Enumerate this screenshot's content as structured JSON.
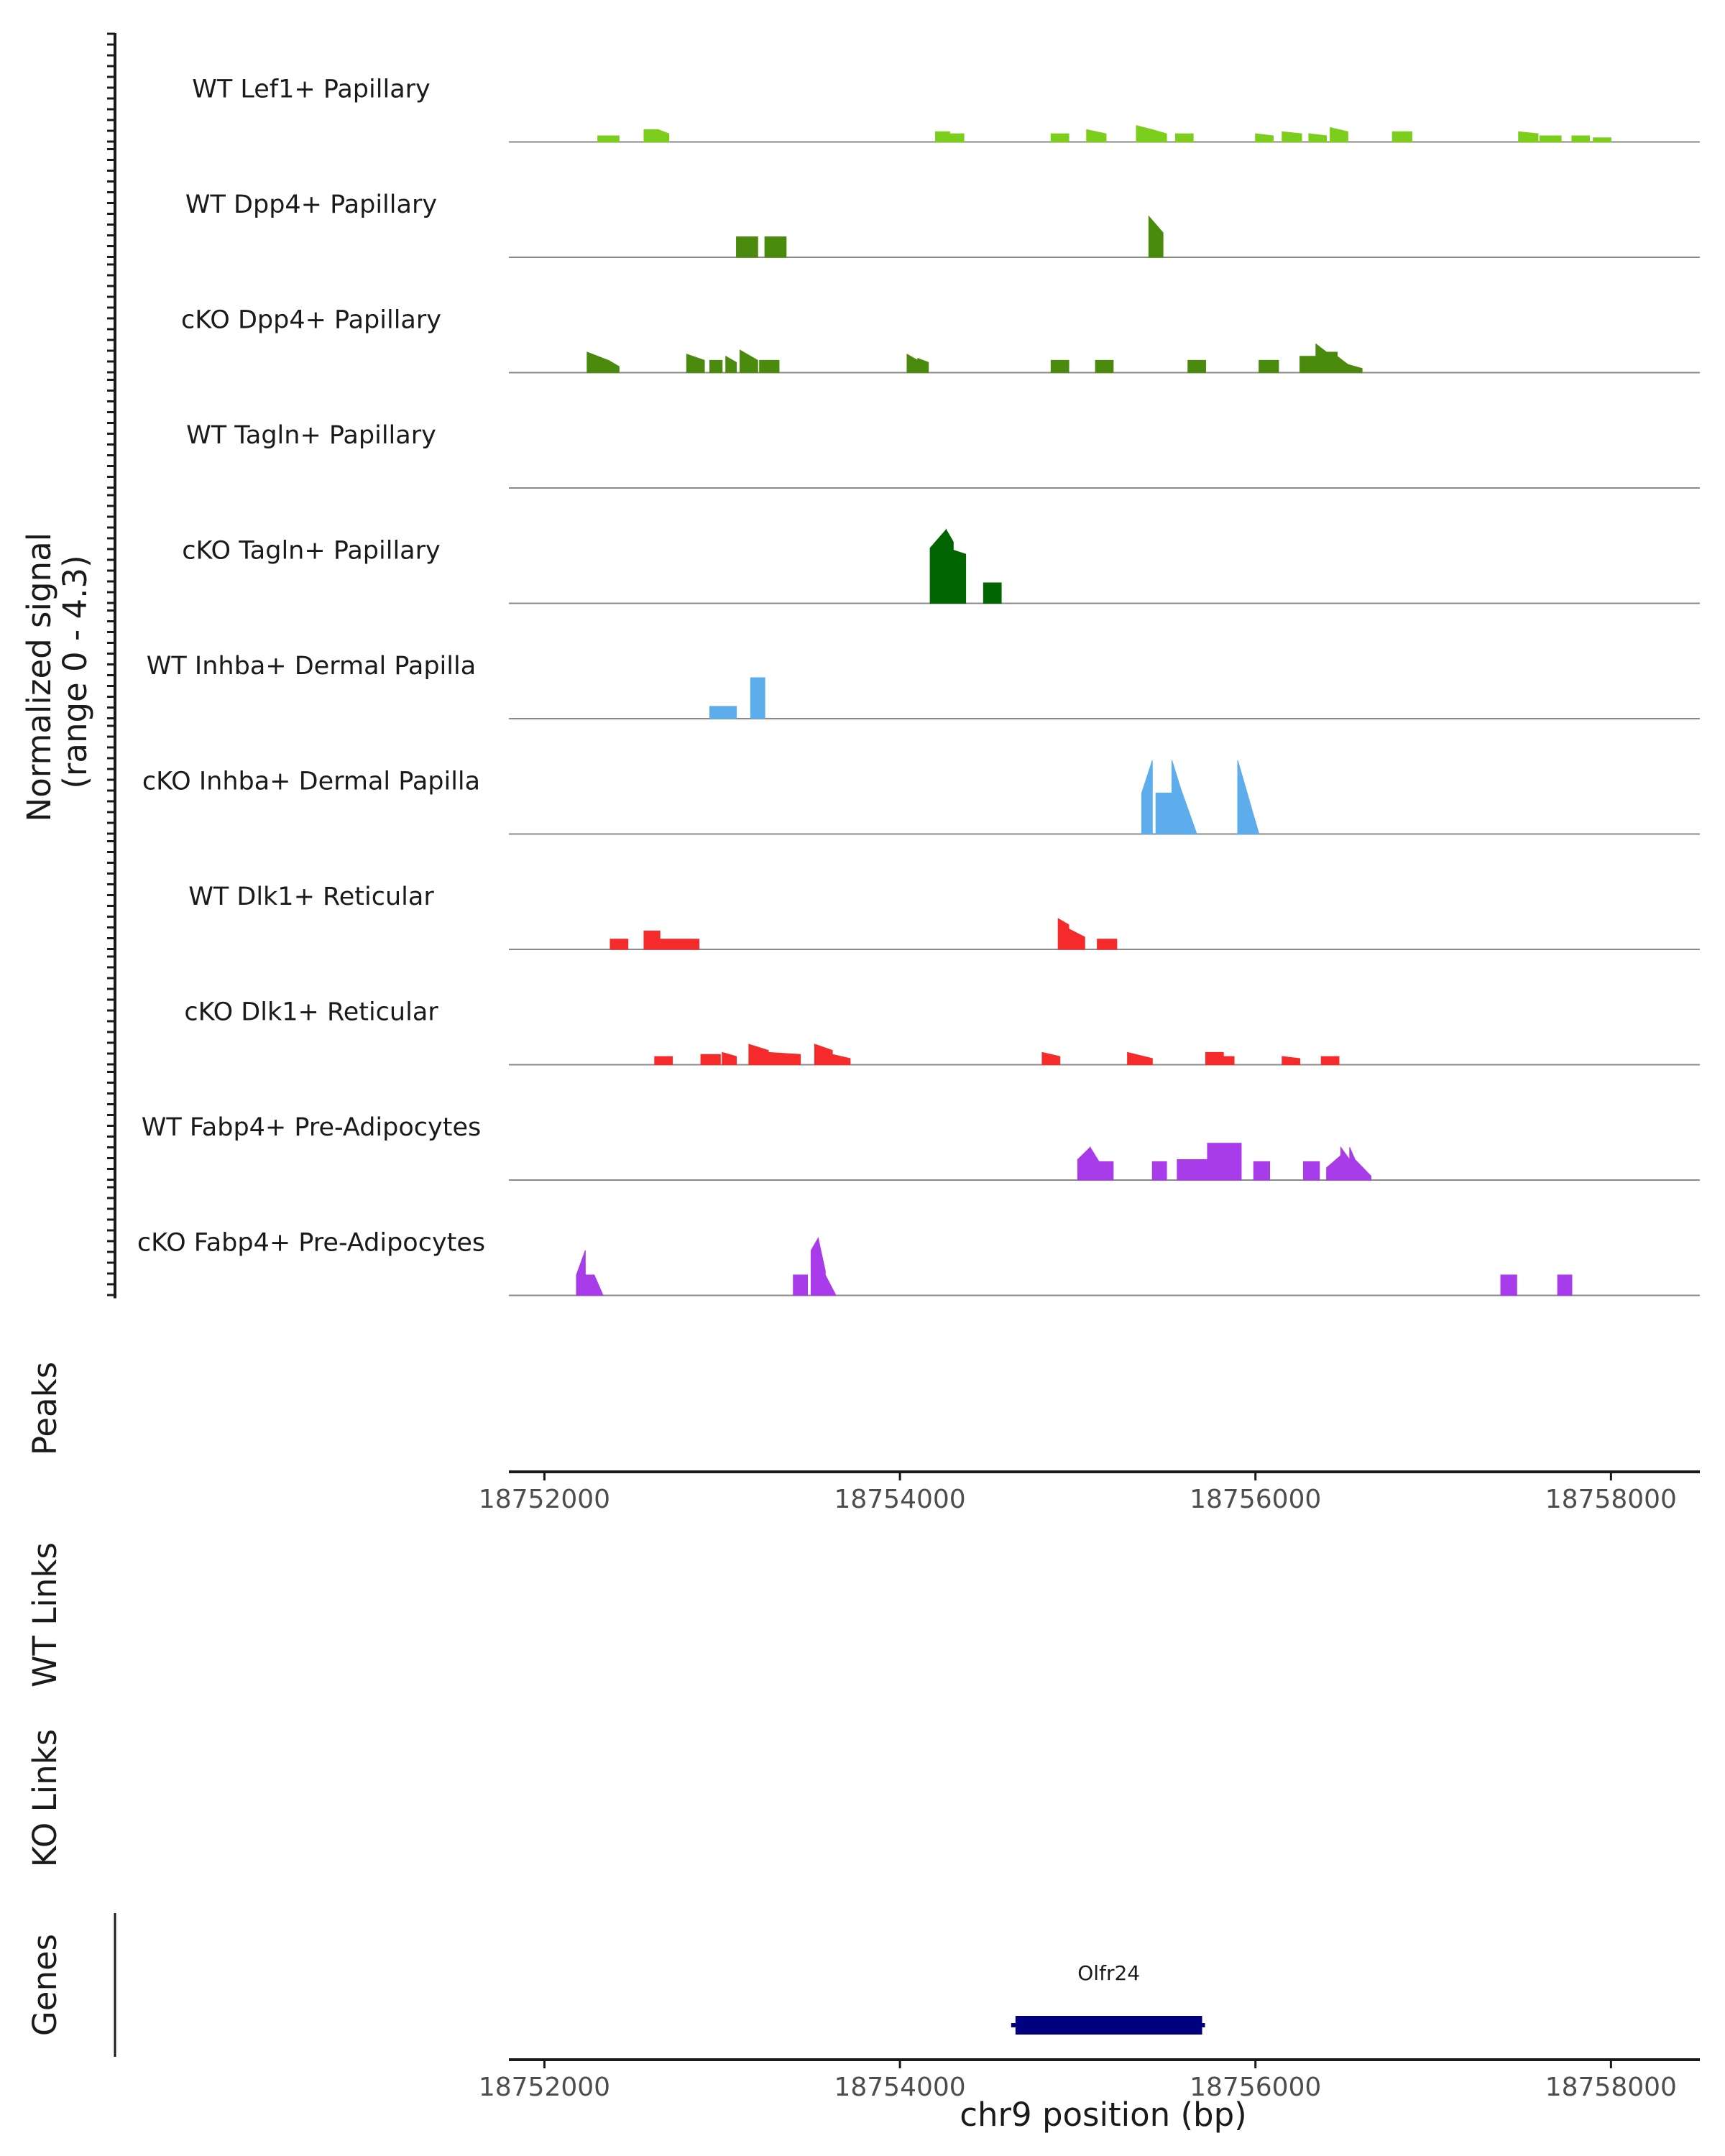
{
  "chart_data": {
    "type": "area",
    "title": "",
    "chromosome": "chr9",
    "xlabel": "chr9 position (bp)",
    "ylabel_line1": "Normalized signal",
    "ylabel_line2": "(range 0 - 4.3)",
    "signal_range": [
      0,
      4.3
    ],
    "xlim": [
      18751800,
      18758500
    ],
    "x_ticks": [
      18752000,
      18754000,
      18756000,
      18758000
    ],
    "x_tick_labels": [
      "18752000",
      "18754000",
      "18756000",
      "18758000"
    ],
    "panel_titles": {
      "peaks": "Peaks",
      "wt_links": "WT Links",
      "ko_links": "KO Links",
      "genes": "Genes"
    },
    "tracks": [
      {
        "name": "WT Lef1+ Papillary",
        "color": "#7CCD1C",
        "regions": [
          [
            18752300,
            18752420,
            0.3,
            0.3
          ],
          [
            18752560,
            18752640,
            0.6,
            0.6
          ],
          [
            18752640,
            18752700,
            0.6,
            0.4
          ],
          [
            18754200,
            18754280,
            0.5,
            0.5
          ],
          [
            18754280,
            18754360,
            0.4,
            0.4
          ],
          [
            18754850,
            18754950,
            0.4,
            0.4
          ],
          [
            18755050,
            18755160,
            0.6,
            0.4
          ],
          [
            18755330,
            18755420,
            0.8,
            0.6
          ],
          [
            18755420,
            18755500,
            0.6,
            0.4
          ],
          [
            18755550,
            18755650,
            0.4,
            0.4
          ],
          [
            18756000,
            18756100,
            0.4,
            0.3
          ],
          [
            18756150,
            18756260,
            0.5,
            0.4
          ],
          [
            18756300,
            18756400,
            0.4,
            0.3
          ],
          [
            18756420,
            18756520,
            0.7,
            0.5
          ],
          [
            18756770,
            18756880,
            0.5,
            0.5
          ],
          [
            18757480,
            18757590,
            0.5,
            0.4
          ],
          [
            18757600,
            18757720,
            0.3,
            0.3
          ],
          [
            18757780,
            18757880,
            0.3,
            0.3
          ],
          [
            18757900,
            18758000,
            0.2,
            0.2
          ]
        ]
      },
      {
        "name": "WT Dpp4+ Papillary",
        "color": "#4A8A0C",
        "regions": [
          [
            18753080,
            18753200,
            1.0,
            1.0
          ],
          [
            18753240,
            18753360,
            1.0,
            1.0
          ],
          [
            18755400,
            18755480,
            2.0,
            1.2
          ]
        ]
      },
      {
        "name": "cKO Dpp4+ Papillary",
        "color": "#4A8A0C",
        "regions": [
          [
            18752240,
            18752360,
            1.0,
            0.6
          ],
          [
            18752360,
            18752420,
            0.6,
            0.3
          ],
          [
            18752800,
            18752900,
            0.9,
            0.6
          ],
          [
            18752930,
            18753000,
            0.6,
            0.6
          ],
          [
            18753020,
            18753080,
            0.8,
            0.5
          ],
          [
            18753100,
            18753200,
            1.1,
            0.6
          ],
          [
            18753210,
            18753320,
            0.6,
            0.6
          ],
          [
            18754040,
            18754100,
            0.9,
            0.6
          ],
          [
            18754100,
            18754160,
            0.7,
            0.5
          ],
          [
            18754850,
            18754950,
            0.6,
            0.6
          ],
          [
            18755100,
            18755200,
            0.6,
            0.6
          ],
          [
            18755620,
            18755720,
            0.6,
            0.6
          ],
          [
            18756020,
            18756130,
            0.6,
            0.6
          ],
          [
            18756250,
            18756340,
            0.8,
            0.8
          ],
          [
            18756340,
            18756400,
            1.4,
            1.0
          ],
          [
            18756400,
            18756460,
            1.0,
            1.0
          ],
          [
            18756460,
            18756520,
            0.8,
            0.4
          ],
          [
            18756520,
            18756600,
            0.4,
            0.2
          ]
        ]
      },
      {
        "name": "WT Tagln+ Papillary",
        "color": "#006400",
        "regions": []
      },
      {
        "name": "cKO Tagln+ Papillary",
        "color": "#006400",
        "regions": [
          [
            18754170,
            18754260,
            2.7,
            3.6
          ],
          [
            18754260,
            18754300,
            3.6,
            3.0
          ],
          [
            18754300,
            18754370,
            2.6,
            2.4
          ],
          [
            18754470,
            18754570,
            1.0,
            1.0
          ]
        ]
      },
      {
        "name": "WT Inhba+ Dermal Papilla",
        "color": "#5DADEC",
        "regions": [
          [
            18752930,
            18753080,
            0.6,
            0.6
          ],
          [
            18753160,
            18753240,
            2.0,
            2.0
          ]
        ]
      },
      {
        "name": "cKO Inhba+ Dermal Papilla",
        "color": "#5DADEC",
        "regions": [
          [
            18755360,
            18755420,
            2.0,
            3.6
          ],
          [
            18755440,
            18755530,
            2.0,
            2.0
          ],
          [
            18755530,
            18755580,
            3.6,
            2.2
          ],
          [
            18755580,
            18755670,
            2.2,
            0.0
          ],
          [
            18755900,
            18756020,
            3.6,
            0.0
          ]
        ]
      },
      {
        "name": "WT Dlk1+ Reticular",
        "color": "#F52A2A",
        "regions": [
          [
            18752370,
            18752470,
            0.5,
            0.5
          ],
          [
            18752560,
            18752650,
            0.9,
            0.9
          ],
          [
            18752650,
            18752870,
            0.5,
            0.5
          ],
          [
            18754890,
            18754950,
            1.5,
            1.2
          ],
          [
            18754950,
            18755040,
            1.0,
            0.6
          ],
          [
            18755110,
            18755220,
            0.5,
            0.5
          ]
        ]
      },
      {
        "name": "cKO Dlk1+ Reticular",
        "color": "#F52A2A",
        "regions": [
          [
            18752620,
            18752720,
            0.4,
            0.4
          ],
          [
            18752880,
            18752990,
            0.5,
            0.5
          ],
          [
            18753000,
            18753080,
            0.6,
            0.4
          ],
          [
            18753150,
            18753260,
            1.0,
            0.7
          ],
          [
            18753260,
            18753440,
            0.6,
            0.5
          ],
          [
            18753520,
            18753620,
            1.0,
            0.7
          ],
          [
            18753620,
            18753720,
            0.5,
            0.3
          ],
          [
            18754800,
            18754900,
            0.6,
            0.4
          ],
          [
            18755280,
            18755420,
            0.6,
            0.3
          ],
          [
            18755720,
            18755820,
            0.6,
            0.6
          ],
          [
            18755820,
            18755880,
            0.4,
            0.4
          ],
          [
            18756150,
            18756250,
            0.4,
            0.3
          ],
          [
            18756370,
            18756470,
            0.4,
            0.4
          ]
        ]
      },
      {
        "name": "WT Fabp4+ Pre-Adipocytes",
        "color": "#A83BEA",
        "regions": [
          [
            18755000,
            18755070,
            1.0,
            1.6
          ],
          [
            18755070,
            18755120,
            1.6,
            0.9
          ],
          [
            18755120,
            18755200,
            0.9,
            0.9
          ],
          [
            18755420,
            18755500,
            0.9,
            0.9
          ],
          [
            18755560,
            18755730,
            1.0,
            1.0
          ],
          [
            18755730,
            18755920,
            1.8,
            1.8
          ],
          [
            18755990,
            18756080,
            0.9,
            0.9
          ],
          [
            18756270,
            18756360,
            0.9,
            0.9
          ],
          [
            18756400,
            18756480,
            0.6,
            1.2
          ],
          [
            18756480,
            18756530,
            1.6,
            1.0
          ],
          [
            18756530,
            18756560,
            1.6,
            1.0
          ],
          [
            18756560,
            18756650,
            1.0,
            0.2
          ]
        ]
      },
      {
        "name": "cKO Fabp4+ Pre-Adipocytes",
        "color": "#A83BEA",
        "regions": [
          [
            18752180,
            18752230,
            1.0,
            2.2
          ],
          [
            18752230,
            18752280,
            1.0,
            1.0
          ],
          [
            18752280,
            18752330,
            1.0,
            0.0
          ],
          [
            18753400,
            18753480,
            1.0,
            1.0
          ],
          [
            18753500,
            18753540,
            2.2,
            2.8
          ],
          [
            18753540,
            18753580,
            2.8,
            1.2
          ],
          [
            18753580,
            18753640,
            1.0,
            0.0
          ],
          [
            18757380,
            18757470,
            1.0,
            1.0
          ],
          [
            18757700,
            18757780,
            1.0,
            1.0
          ]
        ]
      }
    ],
    "genes": [
      {
        "name": "Olfr24",
        "start": 18754650,
        "end": 18755700,
        "color": "#000080"
      }
    ]
  }
}
